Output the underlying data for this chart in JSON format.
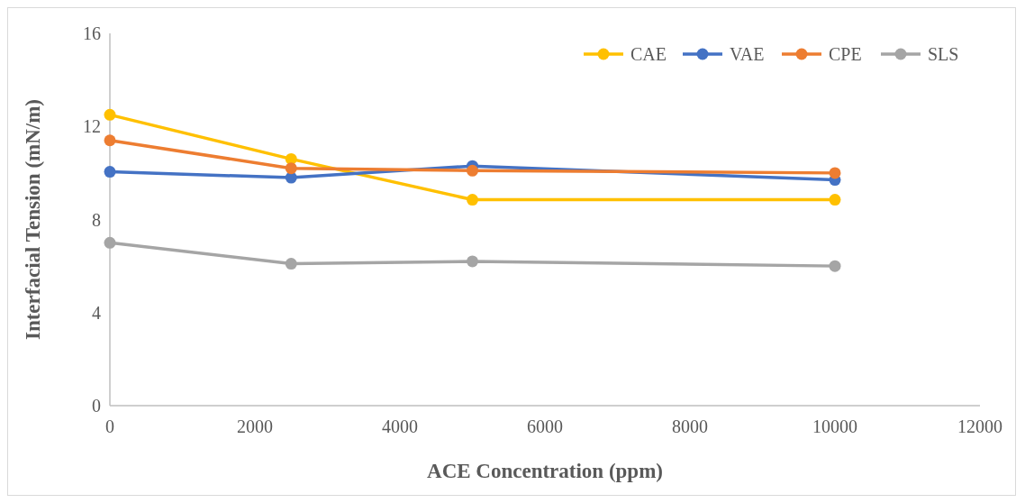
{
  "chart_data": {
    "type": "line",
    "xlabel": "ACE Concentration (ppm)",
    "ylabel": "Interfacial Tension (mN/m)",
    "x": [
      0,
      2500,
      5000,
      10000
    ],
    "xlim": [
      0,
      12000
    ],
    "xticks": [
      0,
      2000,
      4000,
      6000,
      8000,
      10000,
      12000
    ],
    "ylim": [
      0,
      16
    ],
    "yticks": [
      0,
      4,
      8,
      12,
      16
    ],
    "grid": false,
    "legend": "top right",
    "marker": "circle",
    "line_style": "solid",
    "series": [
      {
        "name": "CAE",
        "color": "#ffc000",
        "values": [
          12.5,
          10.6,
          8.85,
          8.85
        ]
      },
      {
        "name": "VAE",
        "color": "#4472c4",
        "values": [
          10.05,
          9.8,
          10.3,
          9.7
        ]
      },
      {
        "name": "CPE",
        "color": "#ed7d31",
        "values": [
          11.4,
          10.2,
          10.1,
          10.0
        ]
      },
      {
        "name": "SLS",
        "color": "#a5a5a5",
        "values": [
          7.0,
          6.1,
          6.2,
          6.0
        ]
      }
    ]
  }
}
